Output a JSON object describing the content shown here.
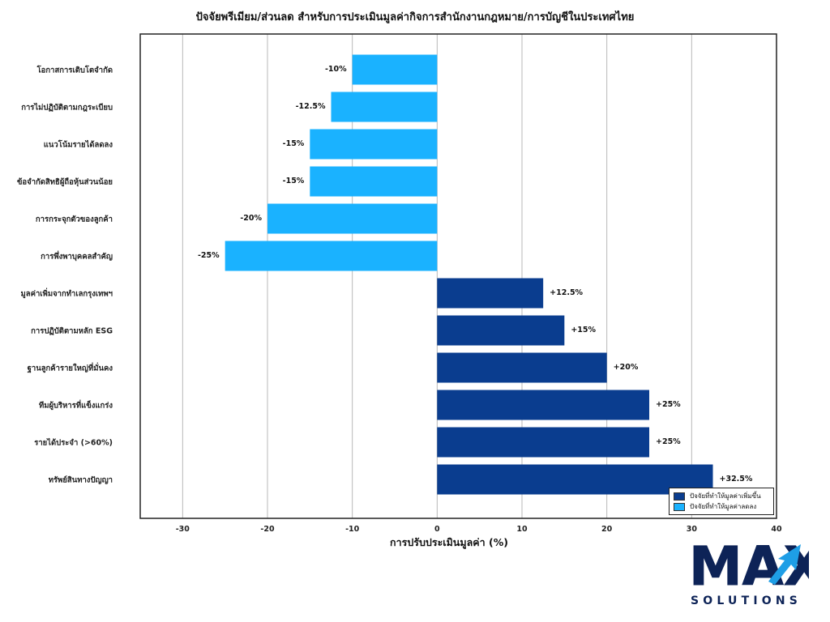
{
  "chart_data": {
    "type": "bar",
    "orientation": "horizontal",
    "title": "ปัจจัยพรีเมียม/ส่วนลด สำหรับการประเมินมูลค่ากิจการสำนักงานกฎหมาย/การบัญชีในประเทศไทย",
    "xlabel": "การปรับประเมินมูลค่า (%)",
    "ylabel": "",
    "xlim": [
      -35,
      40
    ],
    "xticks": [
      -30,
      -20,
      -10,
      0,
      10,
      20,
      30,
      40
    ],
    "grid": "vertical",
    "legend_position": "bottom-right",
    "categories": [
      "โอกาสการเติบโตจำกัด",
      "การไม่ปฏิบัติตามกฎระเบียบ",
      "แนวโน้มรายได้ลดลง",
      "ข้อจำกัดสิทธิผู้ถือหุ้นส่วนน้อย",
      "การกระจุกตัวของลูกค้า",
      "การพึ่งพาบุคคลสำคัญ",
      "มูลค่าเพิ่มจากทำเลกรุงเทพฯ",
      "การปฏิบัติตามหลัก ESG",
      "ฐานลูกค้ารายใหญ่ที่มั่นคง",
      "ทีมผู้บริหารที่แข็งแกร่ง",
      "รายได้ประจำ (>60%)",
      "ทรัพย์สินทางปัญญา"
    ],
    "values": [
      -10,
      -12.5,
      -15,
      -15,
      -20,
      -25,
      12.5,
      15,
      20,
      25,
      25,
      32.5
    ],
    "data_labels": [
      "-10%",
      "-12.5%",
      "-15%",
      "-15%",
      "-20%",
      "-25%",
      "+12.5%",
      "+15%",
      "+20%",
      "+25%",
      "+25%",
      "+32.5%"
    ],
    "series": [
      {
        "name": "ปัจจัยที่ทำให้มูลค่าเพิ่มขึ้น",
        "color": "#0a3d8f"
      },
      {
        "name": "ปัจจัยที่ทำให้มูลค่าลดลง",
        "color": "#1ab2ff"
      }
    ]
  },
  "logo": {
    "brand": "MAX",
    "subtitle": "SOLUTIONS",
    "colors": {
      "dark": "#0d2357",
      "accent": "#1e9ee6"
    }
  }
}
